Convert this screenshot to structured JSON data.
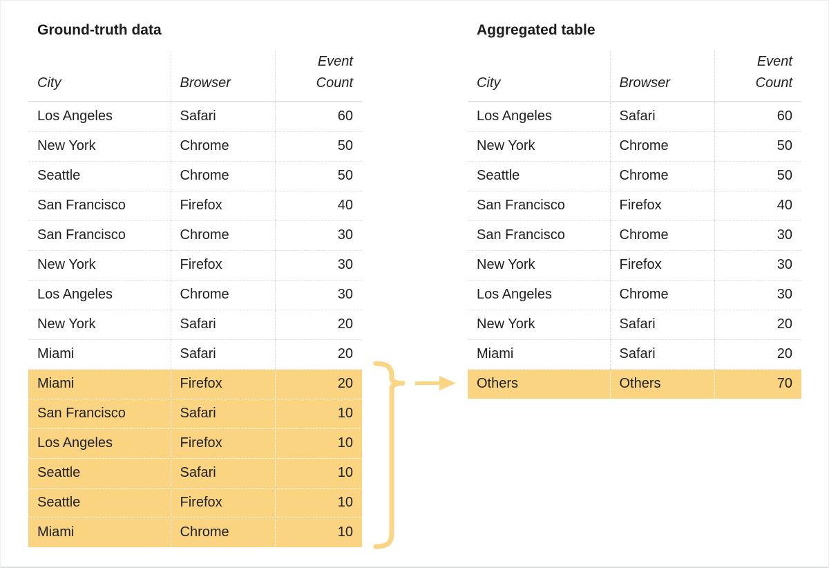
{
  "left_table": {
    "title": "Ground-truth data",
    "columns": [
      "City",
      "Browser",
      "Event Count"
    ],
    "highlight_start_index": 9,
    "rows": [
      [
        "Los Angeles",
        "Safari",
        60
      ],
      [
        "New York",
        "Chrome",
        50
      ],
      [
        "Seattle",
        "Chrome",
        50
      ],
      [
        "San Francisco",
        "Firefox",
        40
      ],
      [
        "San Francisco",
        "Chrome",
        30
      ],
      [
        "New York",
        "Firefox",
        30
      ],
      [
        "Los Angeles",
        "Chrome",
        30
      ],
      [
        "New York",
        "Safari",
        20
      ],
      [
        "Miami",
        "Safari",
        20
      ],
      [
        "Miami",
        "Firefox",
        20
      ],
      [
        "San Francisco",
        "Safari",
        10
      ],
      [
        "Los Angeles",
        "Firefox",
        10
      ],
      [
        "Seattle",
        "Safari",
        10
      ],
      [
        "Seattle",
        "Firefox",
        10
      ],
      [
        "Miami",
        "Chrome",
        10
      ]
    ]
  },
  "right_table": {
    "title": "Aggregated table",
    "columns": [
      "City",
      "Browser",
      "Event Count"
    ],
    "highlight_start_index": 9,
    "rows": [
      [
        "Los Angeles",
        "Safari",
        60
      ],
      [
        "New York",
        "Chrome",
        50
      ],
      [
        "Seattle",
        "Chrome",
        50
      ],
      [
        "San Francisco",
        "Firefox",
        40
      ],
      [
        "San Francisco",
        "Chrome",
        30
      ],
      [
        "New York",
        "Firefox",
        30
      ],
      [
        "Los Angeles",
        "Chrome",
        30
      ],
      [
        "New York",
        "Safari",
        20
      ],
      [
        "Miami",
        "Safari",
        20
      ],
      [
        "Others",
        "Others",
        70
      ]
    ]
  },
  "annotation": {
    "brace_icon": "curly-brace-icon",
    "arrow_icon": "right-arrow-icon"
  },
  "colors": {
    "highlight": "#fad481",
    "accent": "#fad584",
    "text": "#202124",
    "grid": "#e1e2e4"
  }
}
